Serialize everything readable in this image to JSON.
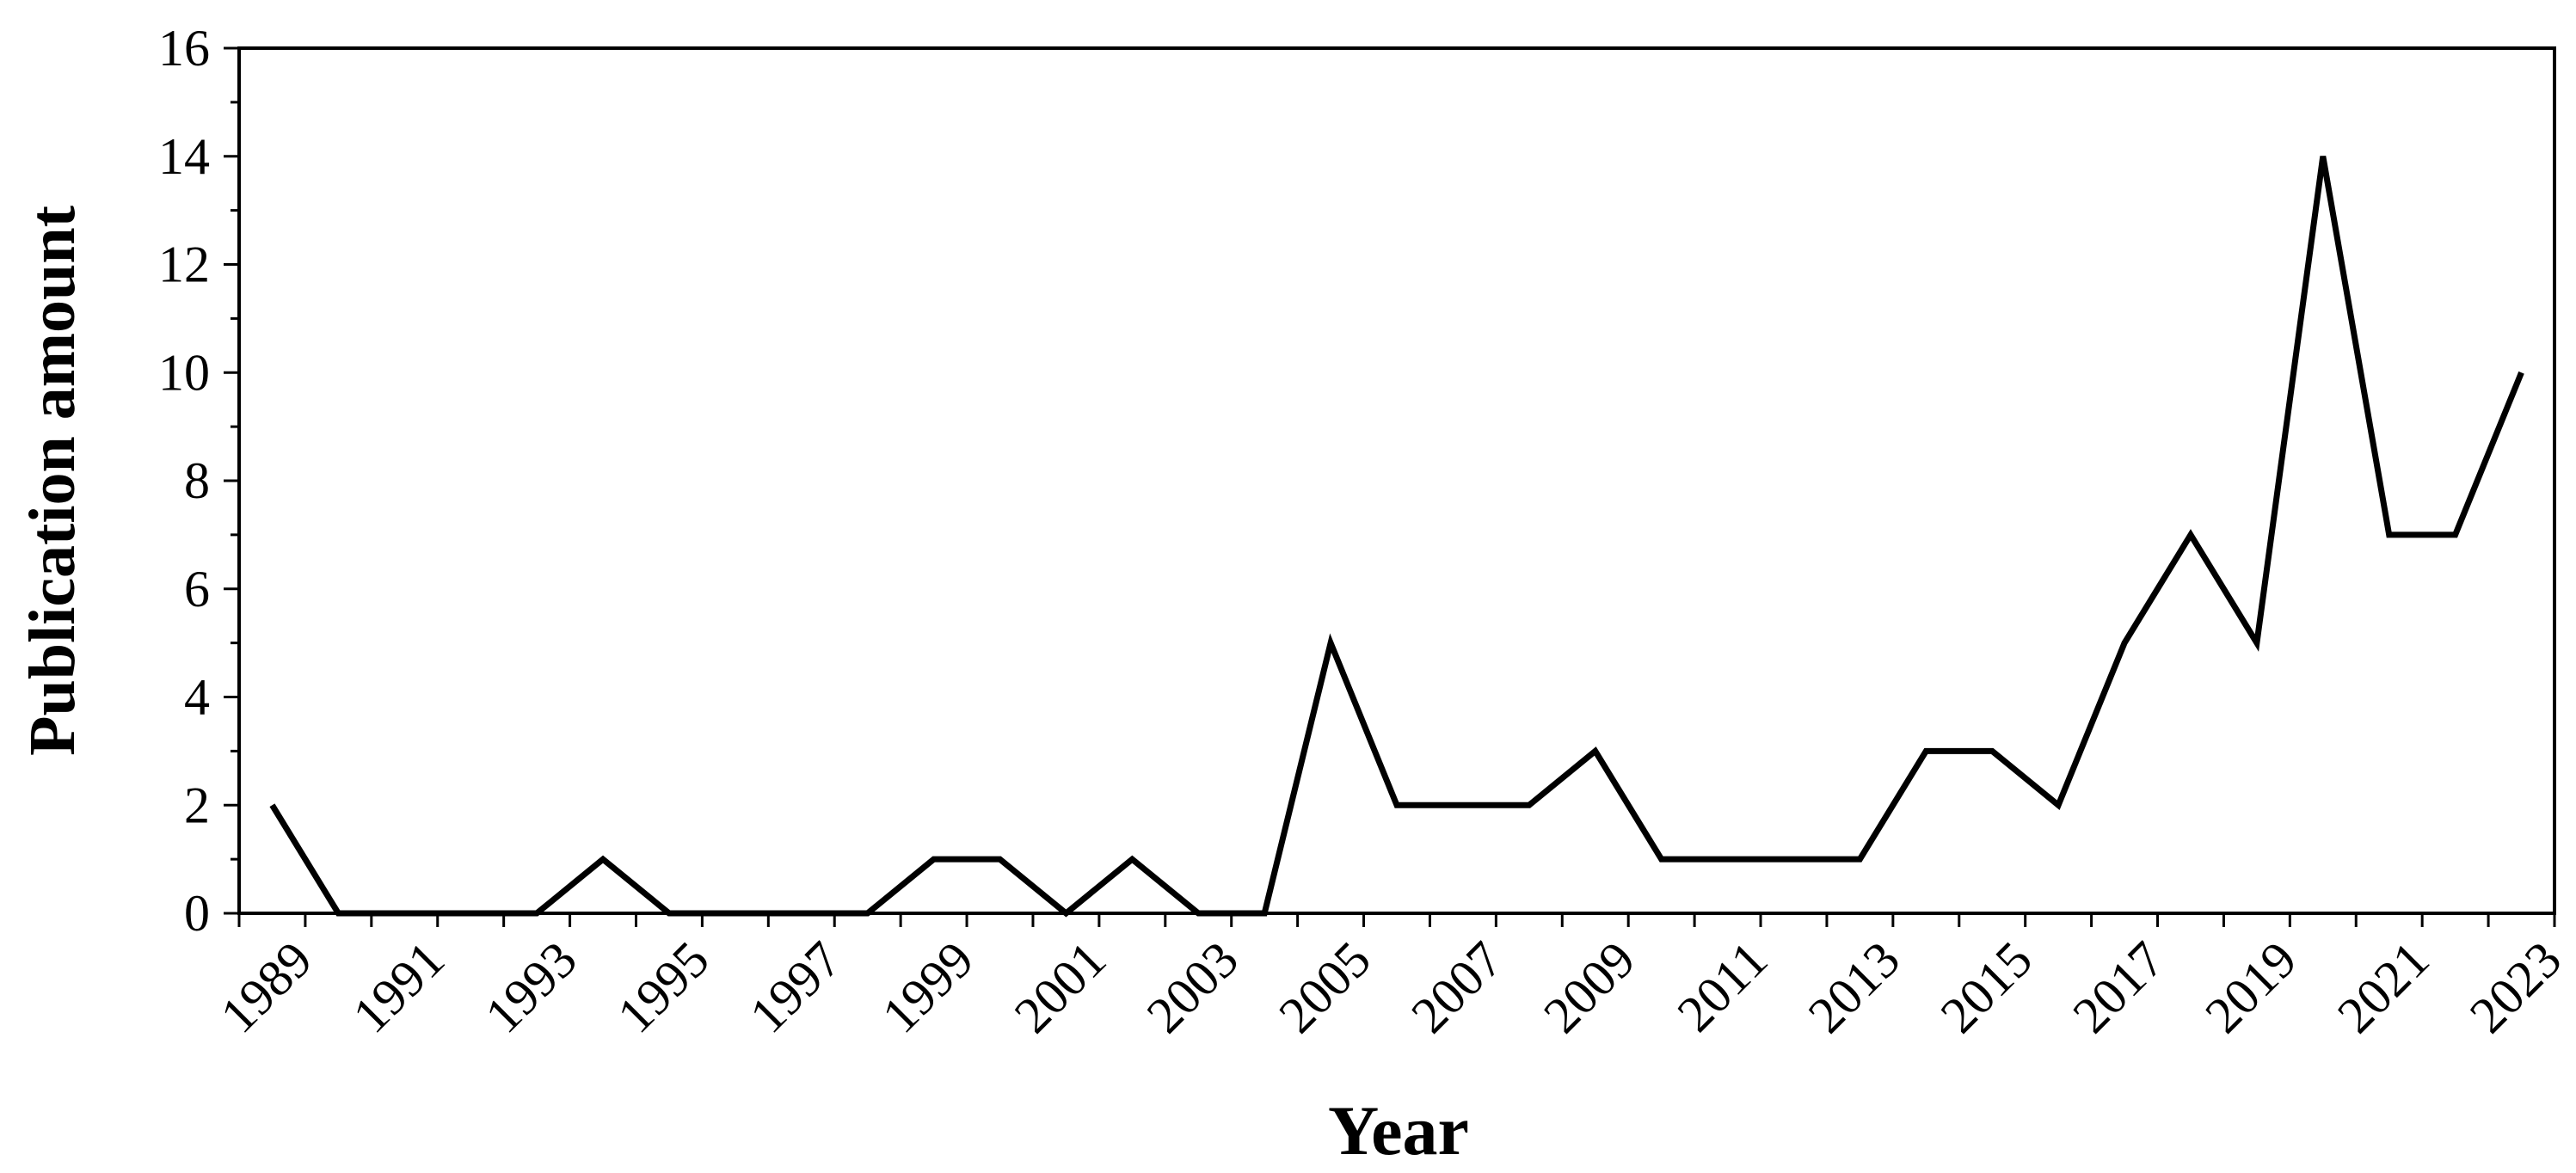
{
  "chart_data": {
    "type": "line",
    "title": "",
    "xlabel": "Year",
    "ylabel": "Publication amount",
    "x": [
      1989,
      1990,
      1991,
      1992,
      1993,
      1994,
      1995,
      1996,
      1997,
      1998,
      1999,
      2000,
      2001,
      2002,
      2003,
      2004,
      2005,
      2006,
      2007,
      2008,
      2009,
      2010,
      2011,
      2012,
      2013,
      2014,
      2015,
      2016,
      2017,
      2018,
      2019,
      2020,
      2021,
      2022,
      2023
    ],
    "series": [
      {
        "values": [
          2,
          0,
          0,
          0,
          0,
          1,
          0,
          0,
          0,
          0,
          1,
          1,
          0,
          1,
          0,
          0,
          5,
          2,
          2,
          2,
          3,
          1,
          1,
          1,
          1,
          3,
          3,
          2,
          5,
          7,
          5,
          14,
          7,
          7,
          10
        ]
      }
    ],
    "x_tick_labels": [
      "1989",
      "1991",
      "1993",
      "1995",
      "1997",
      "1999",
      "2001",
      "2003",
      "2005",
      "2007",
      "2009",
      "2011",
      "2013",
      "2015",
      "2017",
      "2019",
      "2021",
      "2023"
    ],
    "y_tick_labels": [
      "0",
      "2",
      "4",
      "6",
      "8",
      "10",
      "12",
      "14",
      "16"
    ],
    "ylim": [
      0,
      16
    ],
    "grid": false,
    "legend": "none",
    "line_color": "#000000"
  }
}
